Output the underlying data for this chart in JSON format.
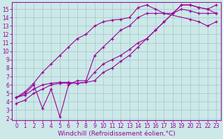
{
  "xlabel": "Windchill (Refroidissement éolien,°C)",
  "ylabel": "",
  "xlim": [
    -0.5,
    23.5
  ],
  "ylim": [
    1.8,
    15.8
  ],
  "xticks": [
    0,
    1,
    2,
    3,
    4,
    5,
    6,
    7,
    8,
    9,
    10,
    11,
    12,
    13,
    14,
    15,
    16,
    17,
    18,
    19,
    20,
    21,
    22,
    23
  ],
  "yticks": [
    2,
    3,
    4,
    5,
    6,
    7,
    8,
    9,
    10,
    11,
    12,
    13,
    14,
    15
  ],
  "background_color": "#cce8e8",
  "line_color": "#990099",
  "grid_color": "#aacccc",
  "lines": [
    {
      "x": [
        0,
        1,
        2,
        3,
        4,
        5,
        6,
        7,
        8,
        9,
        10,
        11,
        12,
        13,
        14,
        15,
        16,
        17,
        20,
        21,
        22,
        23
      ],
      "y": [
        4.5,
        5.2,
        6.2,
        7.5,
        8.5,
        9.5,
        10.5,
        11.5,
        12.0,
        13.0,
        13.5,
        13.7,
        13.8,
        14.0,
        15.2,
        15.5,
        15.0,
        14.5,
        13.8,
        13.5,
        13.0,
        13.5
      ]
    },
    {
      "x": [
        0,
        1,
        2,
        3,
        4,
        5,
        6,
        7,
        8,
        9,
        10,
        11,
        12,
        13,
        14,
        15,
        16,
        17,
        18,
        19,
        20,
        21,
        22,
        23
      ],
      "y": [
        4.5,
        5.0,
        6.0,
        3.2,
        5.5,
        2.2,
        6.0,
        6.5,
        6.5,
        9.5,
        10.5,
        11.5,
        12.5,
        13.0,
        14.0,
        14.5,
        14.5,
        14.5,
        14.5,
        15.0,
        14.8,
        14.5,
        14.5,
        14.5
      ]
    },
    {
      "x": [
        0,
        1,
        2,
        3,
        4,
        5,
        6,
        7,
        8,
        9,
        10,
        11,
        12,
        13,
        14,
        15,
        16,
        17,
        18,
        19,
        20,
        21,
        22,
        23
      ],
      "y": [
        4.5,
        4.8,
        5.5,
        6.0,
        6.2,
        6.3,
        6.3,
        6.2,
        6.3,
        7.5,
        8.5,
        9.0,
        9.5,
        10.2,
        11.0,
        11.5,
        12.5,
        13.5,
        14.5,
        15.5,
        15.5,
        15.2,
        15.0,
        15.5
      ]
    },
    {
      "x": [
        0,
        1,
        2,
        3,
        4,
        5,
        6,
        7,
        8,
        9,
        10,
        11,
        12,
        13,
        14,
        15,
        16,
        17,
        18,
        19,
        20,
        21,
        22,
        23
      ],
      "y": [
        3.8,
        4.2,
        5.0,
        5.5,
        6.0,
        6.2,
        6.2,
        6.2,
        6.3,
        6.5,
        7.5,
        8.0,
        8.8,
        9.5,
        10.5,
        11.5,
        12.5,
        13.5,
        14.5,
        15.5,
        15.5,
        15.2,
        15.0,
        14.5
      ]
    }
  ],
  "tick_fontsize": 5.5,
  "label_fontsize": 6.5
}
